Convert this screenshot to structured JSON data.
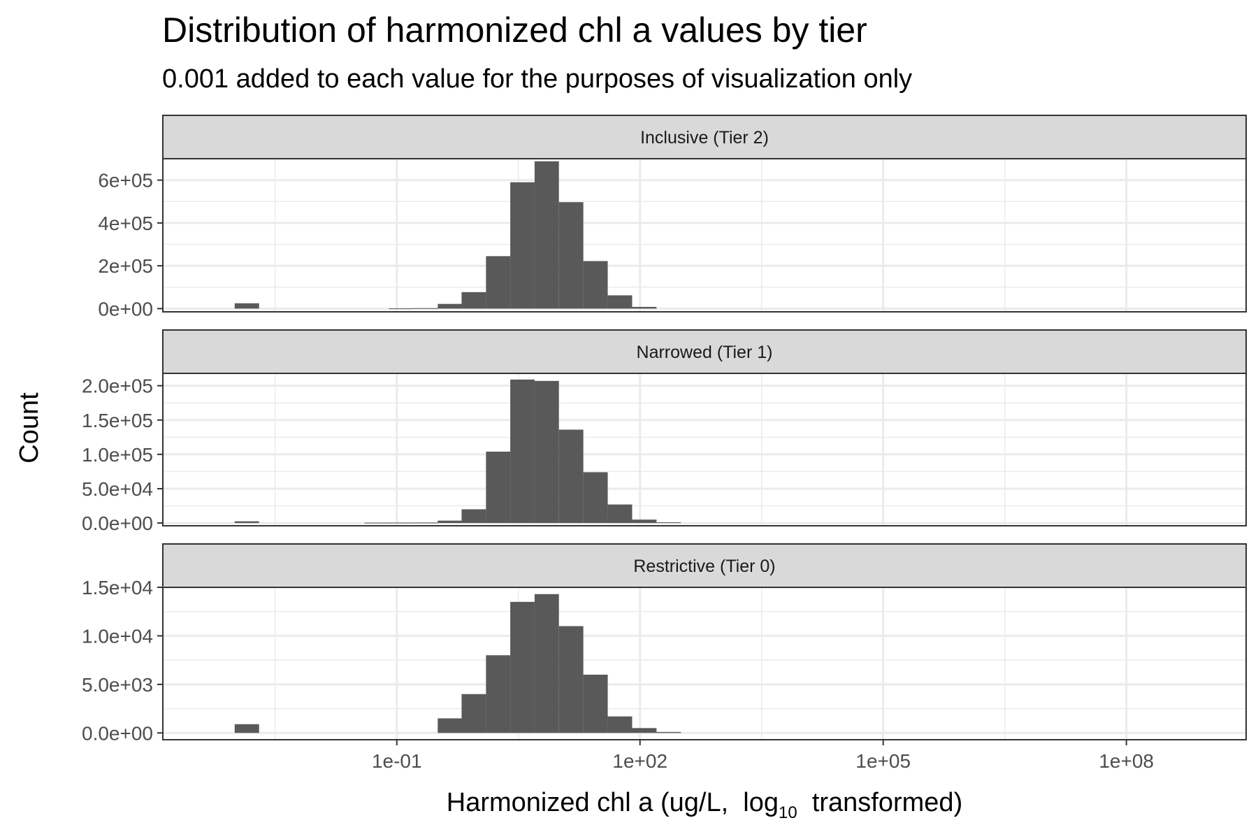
{
  "chart_data": {
    "type": "bar",
    "title": "Distribution of harmonized chl a values by tier",
    "subtitle": "0.001 added to each value for the purposes of visualization only",
    "xlabel": "Harmonized chl a (ug/L,",
    "xlabel_sub": "10",
    "xlabel_log": "log",
    "xlabel_tail": "transformed)",
    "ylabel": "Count",
    "x_scale": "log10",
    "xlim": [
      0.00013,
      3000000000.0
    ],
    "x_ticks": [
      0.1,
      100,
      100000,
      100000000
    ],
    "x_tick_labels": [
      "1e-01",
      "1e+02",
      "1e+05",
      "1e+08"
    ],
    "grid": true,
    "bins": [
      [
        0.001,
        0.002
      ],
      [
        0.02,
        0.04
      ],
      [
        0.04,
        0.08
      ],
      [
        0.08,
        0.16
      ],
      [
        0.16,
        0.32
      ],
      [
        0.32,
        0.63
      ],
      [
        0.63,
        1.26
      ],
      [
        1.26,
        2.51
      ],
      [
        2.51,
        5.01
      ],
      [
        5.01,
        10
      ],
      [
        10,
        20
      ],
      [
        20,
        40
      ],
      [
        40,
        80
      ],
      [
        80,
        160
      ],
      [
        160,
        320
      ]
    ],
    "panels": [
      {
        "label": "Inclusive (Tier 2)",
        "ylim": [
          -15000,
          700000
        ],
        "y_ticks": [
          0,
          200000,
          400000,
          600000
        ],
        "y_tick_labels": [
          "0e+00",
          "2e+05",
          "4e+05",
          "6e+05"
        ],
        "values": [
          25000,
          0,
          0,
          1000,
          2000,
          22000,
          77000,
          245000,
          590000,
          688000,
          497000,
          222000,
          62000,
          8000,
          0
        ]
      },
      {
        "label": "Narrowed (Tier 1)",
        "ylim": [
          -4000,
          218000
        ],
        "y_ticks": [
          0,
          50000,
          100000,
          150000,
          200000
        ],
        "y_tick_labels": [
          "0.0e+00",
          "5.0e+04",
          "1.0e+05",
          "1.5e+05",
          "2.0e+05"
        ],
        "values": [
          2500,
          0,
          500,
          600,
          700,
          3500,
          20000,
          104000,
          209000,
          207000,
          136000,
          74000,
          27000,
          5000,
          1000
        ]
      },
      {
        "label": "Restrictive (Tier 0)",
        "ylim": [
          -700,
          15000
        ],
        "y_ticks": [
          0,
          5000,
          10000,
          15000
        ],
        "y_tick_labels": [
          "0.0e+00",
          "5.0e+03",
          "1.0e+04",
          "1.5e+04"
        ],
        "values": [
          900,
          0,
          0,
          0,
          0,
          1500,
          4000,
          8000,
          13500,
          14300,
          11000,
          6000,
          1700,
          500,
          100
        ]
      }
    ]
  }
}
